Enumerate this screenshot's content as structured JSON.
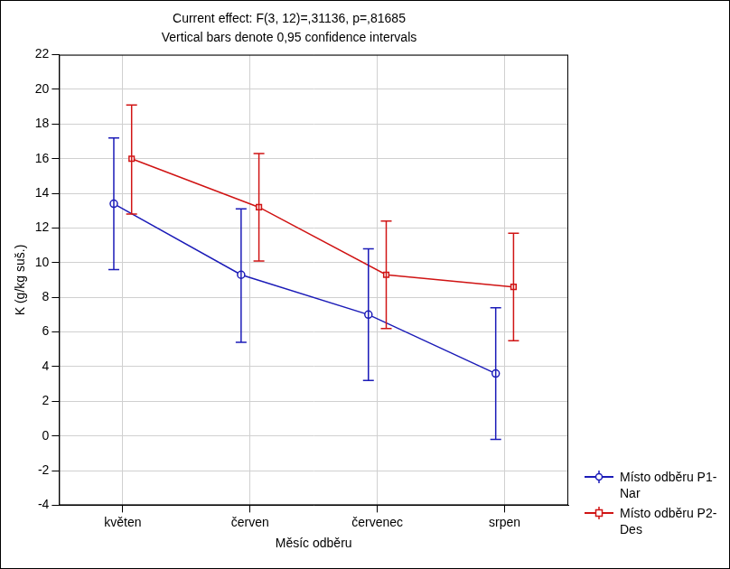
{
  "chart_data": {
    "type": "line",
    "title": "Current effect: F(3, 12)=,31136, p=,81685",
    "subtitle": "Vertical bars denote 0,95 confidence intervals",
    "x_label": "Měsíc odběru",
    "y_label": "K (g/kg suš.)",
    "categories": [
      "květen",
      "červen",
      "červenec",
      "srpen"
    ],
    "series": [
      {
        "name": "Místo odběru P1-Nar",
        "color": "#1c1cb8",
        "marker": "circle",
        "values": [
          13.4,
          9.3,
          7.0,
          3.6
        ],
        "lower": [
          9.6,
          5.4,
          3.2,
          -0.2
        ],
        "upper": [
          17.2,
          13.1,
          10.8,
          7.4
        ]
      },
      {
        "name": "Místo odběru P2-Des",
        "color": "#d01414",
        "marker": "square",
        "values": [
          16.0,
          13.2,
          9.3,
          8.6
        ],
        "lower": [
          12.8,
          10.1,
          6.2,
          5.5
        ],
        "upper": [
          19.1,
          16.3,
          12.4,
          11.7
        ]
      }
    ],
    "ylim": [
      -4,
      22
    ],
    "yticks": [
      -4,
      -2,
      0,
      2,
      4,
      6,
      8,
      10,
      12,
      14,
      16,
      18,
      20,
      22
    ],
    "grid": true,
    "legend": "bottom-right"
  }
}
